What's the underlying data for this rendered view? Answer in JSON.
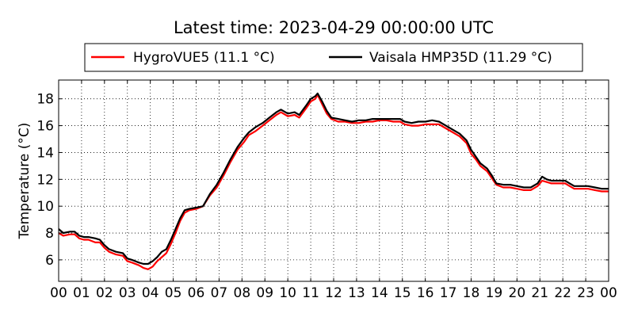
{
  "chart_data": {
    "type": "line",
    "title": "Latest time: 2023-04-29 00:00:00 UTC",
    "xlabel": "",
    "ylabel": "Temperature (°C)",
    "xlim": [
      0,
      24
    ],
    "ylim": [
      4.4,
      19.4
    ],
    "xticks": [
      "00",
      "01",
      "02",
      "03",
      "04",
      "05",
      "06",
      "07",
      "08",
      "09",
      "10",
      "11",
      "12",
      "13",
      "14",
      "15",
      "16",
      "17",
      "18",
      "19",
      "20",
      "21",
      "22",
      "23",
      "00"
    ],
    "yticks": [
      6,
      8,
      10,
      12,
      14,
      16,
      18
    ],
    "grid": true,
    "legend_position": "top",
    "series": [
      {
        "name": "HygroVUE5 (11.1 °C)",
        "color": "#ff0000",
        "points": [
          [
            0,
            8.0
          ],
          [
            0.2,
            7.8
          ],
          [
            0.5,
            7.9
          ],
          [
            0.7,
            7.9
          ],
          [
            0.9,
            7.6
          ],
          [
            1.1,
            7.5
          ],
          [
            1.3,
            7.5
          ],
          [
            1.6,
            7.3
          ],
          [
            1.8,
            7.3
          ],
          [
            2.0,
            6.9
          ],
          [
            2.2,
            6.6
          ],
          [
            2.5,
            6.4
          ],
          [
            2.8,
            6.3
          ],
          [
            3.0,
            5.9
          ],
          [
            3.2,
            5.8
          ],
          [
            3.5,
            5.6
          ],
          [
            3.7,
            5.4
          ],
          [
            3.9,
            5.3
          ],
          [
            4.1,
            5.5
          ],
          [
            4.3,
            5.9
          ],
          [
            4.5,
            6.2
          ],
          [
            4.7,
            6.5
          ],
          [
            4.9,
            7.2
          ],
          [
            5.1,
            8.0
          ],
          [
            5.3,
            8.9
          ],
          [
            5.5,
            9.5
          ],
          [
            5.7,
            9.7
          ],
          [
            6.0,
            9.8
          ],
          [
            6.3,
            10.0
          ],
          [
            6.6,
            10.8
          ],
          [
            6.9,
            11.4
          ],
          [
            7.2,
            12.3
          ],
          [
            7.5,
            13.3
          ],
          [
            7.8,
            14.2
          ],
          [
            8.1,
            14.8
          ],
          [
            8.3,
            15.3
          ],
          [
            8.6,
            15.6
          ],
          [
            8.9,
            16.0
          ],
          [
            9.2,
            16.4
          ],
          [
            9.5,
            16.8
          ],
          [
            9.7,
            17.0
          ],
          [
            10.0,
            16.7
          ],
          [
            10.3,
            16.8
          ],
          [
            10.5,
            16.6
          ],
          [
            10.8,
            17.3
          ],
          [
            11.0,
            17.8
          ],
          [
            11.2,
            18.0
          ],
          [
            11.3,
            18.3
          ],
          [
            11.5,
            17.6
          ],
          [
            11.7,
            16.9
          ],
          [
            11.9,
            16.5
          ],
          [
            12.2,
            16.3
          ],
          [
            12.5,
            16.3
          ],
          [
            12.8,
            16.2
          ],
          [
            13.1,
            16.2
          ],
          [
            13.4,
            16.3
          ],
          [
            13.7,
            16.3
          ],
          [
            14.0,
            16.4
          ],
          [
            14.3,
            16.4
          ],
          [
            14.6,
            16.3
          ],
          [
            14.9,
            16.3
          ],
          [
            15.1,
            16.1
          ],
          [
            15.4,
            16.0
          ],
          [
            15.7,
            16.0
          ],
          [
            16.0,
            16.1
          ],
          [
            16.3,
            16.1
          ],
          [
            16.6,
            16.1
          ],
          [
            16.9,
            15.8
          ],
          [
            17.2,
            15.5
          ],
          [
            17.5,
            15.2
          ],
          [
            17.8,
            14.7
          ],
          [
            18.0,
            13.9
          ],
          [
            18.2,
            13.5
          ],
          [
            18.4,
            13.0
          ],
          [
            18.7,
            12.6
          ],
          [
            18.9,
            12.1
          ],
          [
            19.1,
            11.6
          ],
          [
            19.4,
            11.4
          ],
          [
            19.7,
            11.4
          ],
          [
            20.0,
            11.3
          ],
          [
            20.3,
            11.2
          ],
          [
            20.6,
            11.2
          ],
          [
            20.9,
            11.5
          ],
          [
            21.1,
            11.9
          ],
          [
            21.3,
            11.8
          ],
          [
            21.5,
            11.7
          ],
          [
            21.8,
            11.7
          ],
          [
            22.1,
            11.7
          ],
          [
            22.3,
            11.5
          ],
          [
            22.5,
            11.3
          ],
          [
            22.8,
            11.3
          ],
          [
            23.1,
            11.3
          ],
          [
            23.4,
            11.2
          ],
          [
            23.7,
            11.1
          ],
          [
            24.0,
            11.1
          ]
        ]
      },
      {
        "name": "Vaisala HMP35D (11.29 °C)",
        "color": "#000000",
        "points": [
          [
            0,
            8.3
          ],
          [
            0.2,
            8.0
          ],
          [
            0.5,
            8.1
          ],
          [
            0.7,
            8.1
          ],
          [
            0.9,
            7.8
          ],
          [
            1.1,
            7.7
          ],
          [
            1.3,
            7.7
          ],
          [
            1.6,
            7.6
          ],
          [
            1.8,
            7.5
          ],
          [
            2.0,
            7.1
          ],
          [
            2.2,
            6.8
          ],
          [
            2.5,
            6.6
          ],
          [
            2.8,
            6.5
          ],
          [
            3.0,
            6.1
          ],
          [
            3.2,
            6.0
          ],
          [
            3.5,
            5.8
          ],
          [
            3.7,
            5.7
          ],
          [
            3.9,
            5.7
          ],
          [
            4.1,
            5.9
          ],
          [
            4.3,
            6.2
          ],
          [
            4.5,
            6.6
          ],
          [
            4.7,
            6.8
          ],
          [
            4.9,
            7.5
          ],
          [
            5.1,
            8.3
          ],
          [
            5.3,
            9.1
          ],
          [
            5.5,
            9.7
          ],
          [
            5.7,
            9.8
          ],
          [
            6.0,
            9.9
          ],
          [
            6.3,
            10.0
          ],
          [
            6.6,
            10.9
          ],
          [
            6.9,
            11.6
          ],
          [
            7.2,
            12.5
          ],
          [
            7.5,
            13.5
          ],
          [
            7.8,
            14.4
          ],
          [
            8.1,
            15.1
          ],
          [
            8.3,
            15.5
          ],
          [
            8.6,
            15.9
          ],
          [
            8.9,
            16.2
          ],
          [
            9.2,
            16.6
          ],
          [
            9.5,
            17.0
          ],
          [
            9.7,
            17.2
          ],
          [
            10.0,
            16.9
          ],
          [
            10.3,
            17.0
          ],
          [
            10.5,
            16.8
          ],
          [
            10.8,
            17.5
          ],
          [
            11.0,
            18.0
          ],
          [
            11.2,
            18.2
          ],
          [
            11.3,
            18.4
          ],
          [
            11.5,
            17.8
          ],
          [
            11.7,
            17.1
          ],
          [
            11.9,
            16.6
          ],
          [
            12.2,
            16.5
          ],
          [
            12.5,
            16.4
          ],
          [
            12.8,
            16.3
          ],
          [
            13.1,
            16.4
          ],
          [
            13.4,
            16.4
          ],
          [
            13.7,
            16.5
          ],
          [
            14.0,
            16.5
          ],
          [
            14.3,
            16.5
          ],
          [
            14.6,
            16.5
          ],
          [
            14.9,
            16.5
          ],
          [
            15.1,
            16.3
          ],
          [
            15.4,
            16.2
          ],
          [
            15.7,
            16.3
          ],
          [
            16.0,
            16.3
          ],
          [
            16.3,
            16.4
          ],
          [
            16.6,
            16.3
          ],
          [
            16.9,
            16.0
          ],
          [
            17.2,
            15.7
          ],
          [
            17.5,
            15.4
          ],
          [
            17.8,
            14.9
          ],
          [
            18.0,
            14.2
          ],
          [
            18.2,
            13.7
          ],
          [
            18.4,
            13.2
          ],
          [
            18.7,
            12.8
          ],
          [
            18.9,
            12.3
          ],
          [
            19.1,
            11.7
          ],
          [
            19.4,
            11.6
          ],
          [
            19.7,
            11.6
          ],
          [
            20.0,
            11.5
          ],
          [
            20.3,
            11.4
          ],
          [
            20.6,
            11.4
          ],
          [
            20.9,
            11.7
          ],
          [
            21.1,
            12.2
          ],
          [
            21.3,
            12.0
          ],
          [
            21.5,
            11.9
          ],
          [
            21.8,
            11.9
          ],
          [
            22.1,
            11.9
          ],
          [
            22.3,
            11.7
          ],
          [
            22.5,
            11.5
          ],
          [
            22.8,
            11.5
          ],
          [
            23.1,
            11.5
          ],
          [
            23.4,
            11.4
          ],
          [
            23.7,
            11.3
          ],
          [
            24.0,
            11.3
          ]
        ]
      }
    ]
  }
}
